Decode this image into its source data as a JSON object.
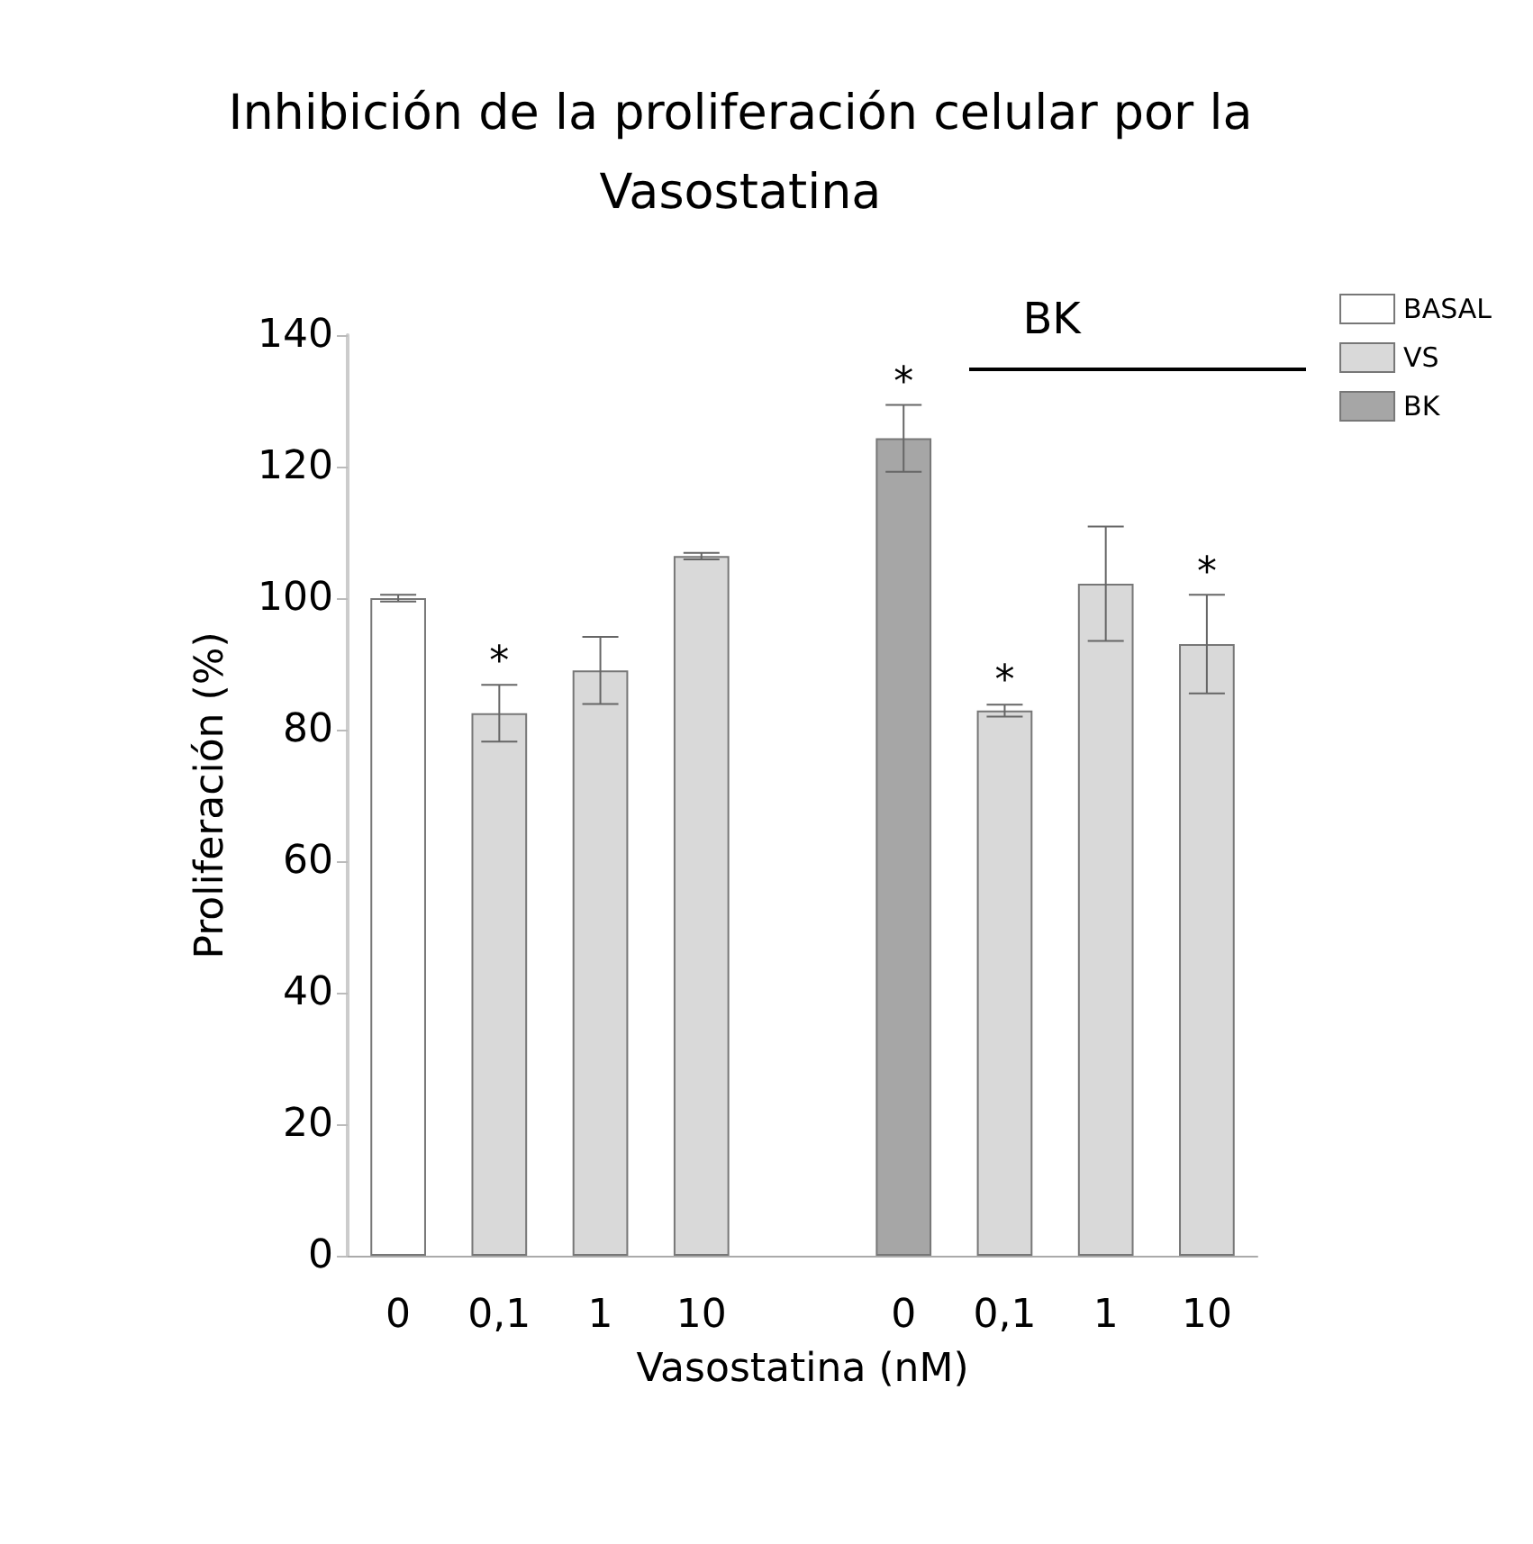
{
  "chart_data": {
    "type": "bar",
    "title": "Inhibición de la proliferación celular por la\nVasostatina",
    "xlabel": "Vasostatina (nM)",
    "ylabel": "Proliferación (%)",
    "categories": [
      "0",
      "0,1",
      "1",
      "10",
      null,
      "0",
      "0,1",
      "1",
      "10"
    ],
    "series": [
      {
        "name": "BASAL",
        "color": "#ffffff",
        "values": [
          100,
          null,
          null,
          null,
          null,
          null,
          null,
          null,
          null
        ],
        "errors": [
          0.5,
          null,
          null,
          null,
          null,
          null,
          null,
          null,
          null
        ]
      },
      {
        "name": "VS",
        "color": "#d9d9d9",
        "values": [
          null,
          82.5,
          89.0,
          106.4,
          null,
          null,
          82.9,
          102.2,
          93.0
        ],
        "errors": [
          null,
          4.3,
          5.1,
          0.5,
          null,
          null,
          0.9,
          8.7,
          7.5
        ],
        "value_labels": [
          null,
          "*",
          null,
          null,
          null,
          null,
          "*",
          null,
          "*"
        ]
      },
      {
        "name": "BK",
        "color": "#a6a6a6",
        "values": [
          null,
          null,
          null,
          null,
          null,
          124.3,
          null,
          null,
          null
        ],
        "errors": [
          null,
          null,
          null,
          null,
          null,
          5.1,
          null,
          null,
          null
        ],
        "value_labels": [
          null,
          null,
          null,
          null,
          null,
          "*",
          null,
          null,
          null
        ]
      }
    ],
    "annotations": [
      "BK"
    ],
    "ylim": [
      0,
      140
    ],
    "yticks": [
      0,
      20,
      40,
      60,
      80,
      100,
      120,
      140
    ],
    "grid": false,
    "legend": "top right"
  }
}
